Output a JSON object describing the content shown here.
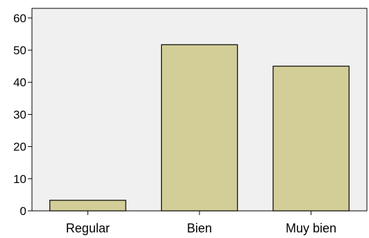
{
  "chart_data": {
    "type": "bar",
    "categories": [
      "Regular",
      "Bien",
      "Muy bien"
    ],
    "values": [
      3.3,
      51.7,
      45.0
    ],
    "title": "",
    "xlabel": "",
    "ylabel": "",
    "ylim": [
      0,
      63
    ],
    "yticks": [
      0,
      10,
      20,
      30,
      40,
      50,
      60
    ],
    "grid": false,
    "legend": "none",
    "colors": {
      "bar_fill": "#d3cd98",
      "bar_stroke": "#000000",
      "plot_background": "#f0f0f0",
      "axis": "#000000"
    }
  }
}
